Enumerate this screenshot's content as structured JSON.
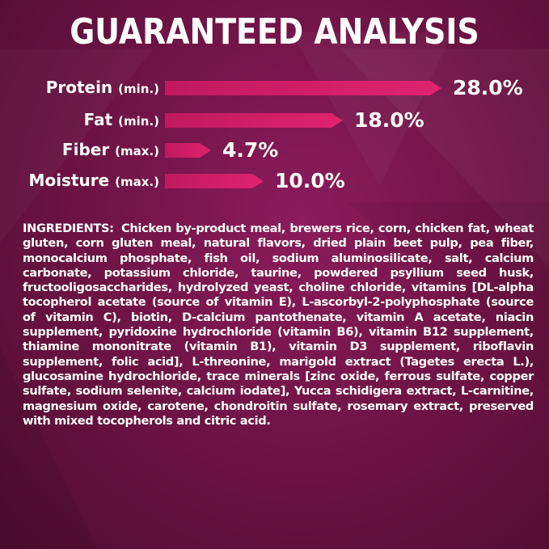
{
  "title": "GUARANTEED ANALYSIS",
  "colors": {
    "background": "#711447",
    "bar": "#d81f69",
    "text": "#ffffff"
  },
  "analysis": [
    {
      "nutrient": "Protein",
      "qualifier": "(min.)",
      "value": "28.0%",
      "percent": 28.0
    },
    {
      "nutrient": "Fat",
      "qualifier": "(min.)",
      "value": "18.0%",
      "percent": 18.0
    },
    {
      "nutrient": "Fiber",
      "qualifier": "(max.)",
      "value": "4.7%",
      "percent": 4.7
    },
    {
      "nutrient": "Moisture",
      "qualifier": "(max.)",
      "value": "10.0%",
      "percent": 10.0
    }
  ],
  "ingredients": {
    "heading": "INGREDIENTS:",
    "text": "Chicken by-product meal, brewers rice, corn, chicken fat, wheat gluten, corn gluten meal, natural flavors, dried plain beet pulp, pea fiber, monocalcium phosphate, fish oil, sodium aluminosilicate, salt, calcium carbonate, potassium chloride, taurine, powdered psyllium seed husk, fructooligosaccharides, hydrolyzed yeast, choline chloride, vitamins [DL-alpha tocopherol acetate (source of vitamin E), L-ascorbyl-2-polyphosphate (source of vitamin C), biotin, D-calcium pantothenate, vitamin A acetate, niacin supplement, pyridoxine hydrochloride (vitamin B6), vitamin B12 supplement, thiamine mononitrate (vitamin B1), vitamin D3 supplement, riboflavin supplement, folic acid], L-threonine, marigold extract (Tagetes erecta L.), glucosamine hydrochloride, trace minerals [zinc oxide, ferrous sulfate, copper sulfate, sodium selenite, calcium iodate], Yucca schidigera extract, L-carnitine, magnesium oxide, carotene, chondroitin sulfate, rosemary extract, preserved with mixed tocopherols and citric acid."
  }
}
